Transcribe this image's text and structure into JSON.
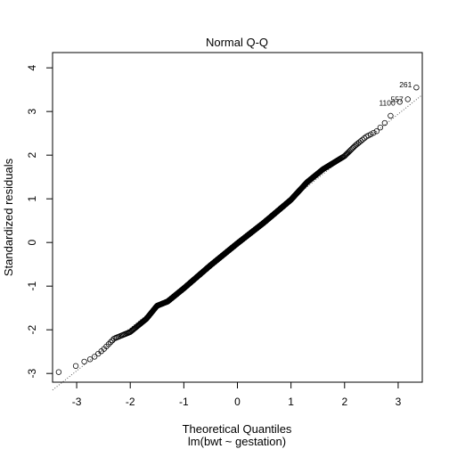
{
  "chart_data": {
    "type": "scatter",
    "title": "Normal Q-Q",
    "xlabel": "Theoretical Quantiles",
    "xlabel_sub": "lm(bwt ~ gestation)",
    "ylabel": "Standardized residuals",
    "xlim": [
      -3.45,
      3.45
    ],
    "ylim": [
      -3.2,
      4.35
    ],
    "xticks": [
      -3,
      -2,
      -1,
      0,
      1,
      2,
      3
    ],
    "yticks": [
      -3,
      -2,
      -1,
      0,
      1,
      2,
      3,
      4
    ],
    "reference_line": {
      "style": "dotted",
      "slope": 0.98,
      "intercept": 0.0
    },
    "curve_knots": [
      [
        -3.34,
        -2.97
      ],
      [
        -3.05,
        -2.85
      ],
      [
        -2.9,
        -2.75
      ],
      [
        -2.7,
        -2.65
      ],
      [
        -2.5,
        -2.45
      ],
      [
        -2.3,
        -2.2
      ],
      [
        -2.0,
        -2.05
      ],
      [
        -1.7,
        -1.75
      ],
      [
        -1.5,
        -1.45
      ],
      [
        -1.3,
        -1.35
      ],
      [
        -1.0,
        -1.05
      ],
      [
        -0.5,
        -0.52
      ],
      [
        0.0,
        -0.02
      ],
      [
        0.5,
        0.46
      ],
      [
        1.0,
        0.98
      ],
      [
        1.3,
        1.38
      ],
      [
        1.6,
        1.68
      ],
      [
        2.0,
        1.98
      ],
      [
        2.2,
        2.22
      ],
      [
        2.4,
        2.42
      ],
      [
        2.6,
        2.55
      ],
      [
        2.8,
        2.8
      ],
      [
        3.0,
        3.15
      ]
    ],
    "extreme_points": [
      {
        "x": 3.03,
        "y": 3.22
      },
      {
        "x": 3.18,
        "y": 3.28
      },
      {
        "x": 3.34,
        "y": 3.55
      }
    ],
    "labeled_points": [
      "261",
      "557",
      "1100"
    ]
  }
}
